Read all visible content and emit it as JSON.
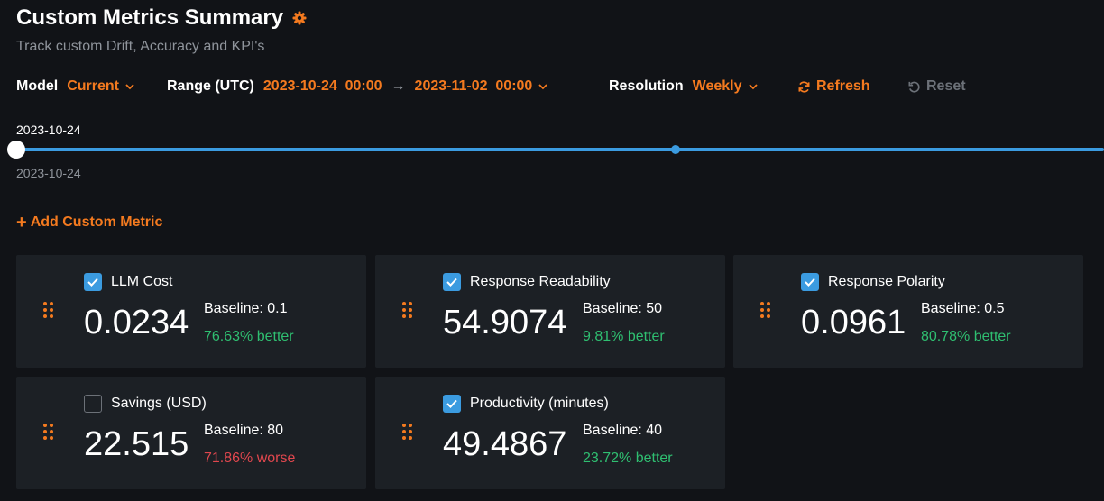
{
  "header": {
    "title": "Custom Metrics Summary",
    "subtitle": "Track custom Drift, Accuracy and KPI's"
  },
  "controls": {
    "model_label": "Model",
    "model_value": "Current",
    "range_label": "Range (UTC)",
    "range_start": "2023-10-24  00:00",
    "range_end": "2023-11-02  00:00",
    "resolution_label": "Resolution",
    "resolution_value": "Weekly",
    "refresh_label": "Refresh",
    "reset_label": "Reset"
  },
  "timeline": {
    "top_date": "2023-10-24",
    "bottom_date": "2023-10-24"
  },
  "add_metric_label": "Add Custom Metric",
  "metrics": [
    {
      "name": "LLM Cost",
      "checked": true,
      "value": "0.0234",
      "baseline": "Baseline: 0.1",
      "delta": "76.63% better",
      "status": "better"
    },
    {
      "name": "Response Readability",
      "checked": true,
      "value": "54.9074",
      "baseline": "Baseline: 50",
      "delta": "9.81% better",
      "status": "better"
    },
    {
      "name": "Response Polarity",
      "checked": true,
      "value": "0.0961",
      "baseline": "Baseline: 0.5",
      "delta": "80.78% better",
      "status": "better"
    },
    {
      "name": "Savings (USD)",
      "checked": false,
      "value": "22.515",
      "baseline": "Baseline: 80",
      "delta": "71.86% worse",
      "status": "worse"
    },
    {
      "name": "Productivity (minutes)",
      "checked": true,
      "value": "49.4867",
      "baseline": "Baseline: 40",
      "delta": "23.72% better",
      "status": "better"
    }
  ],
  "colors": {
    "accent": "#f47a1f",
    "slider": "#3b9be0",
    "better": "#2fbf71",
    "worse": "#e0474e"
  }
}
